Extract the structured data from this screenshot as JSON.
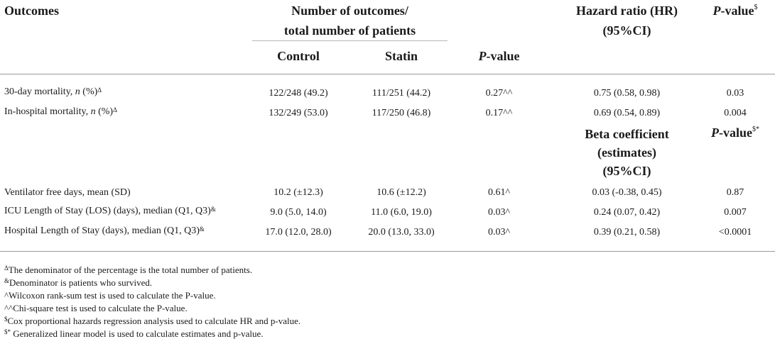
{
  "headers": {
    "outcomes": "Outcomes",
    "number_line1": "Number of outcomes/",
    "number_line2": "total number of patients",
    "control": "Control",
    "statin": "Statin",
    "pvalue_italic": "P",
    "pvalue_rest": "-value",
    "hr_line1": "Hazard ratio (HR)",
    "hr_line2": "(95%CI)",
    "pvalue2_italic": "P",
    "pvalue2_rest": "-value",
    "pvalue2_sup": "$",
    "beta_line1": "Beta coefficient",
    "beta_line2": "(estimates)",
    "beta_line3": "(95%CI)",
    "pvalue3_italic": "P",
    "pvalue3_rest": "-value",
    "pvalue3_sup": "$*"
  },
  "rows": [
    {
      "pre": "30-day mortality, ",
      "ital": "n",
      "post": " (%)",
      "sup": "Δ",
      "control": "122/248 (49.2)",
      "statin": "111/251 (44.2)",
      "p": "0.27^^",
      "est": "0.75 (0.58, 0.98)",
      "p2": "0.03"
    },
    {
      "pre": "In-hospital mortality, ",
      "ital": "n",
      "post": " (%)",
      "sup": "Δ",
      "control": "132/249 (53.0)",
      "statin": "117/250 (46.8)",
      "p": "0.17^^",
      "est": "0.69 (0.54, 0.89)",
      "p2": "0.004"
    },
    {
      "pre": "Ventilator free days, mean (SD)",
      "ital": "",
      "post": "",
      "sup": "",
      "control": "10.2 (±12.3)",
      "statin": "10.6 (±12.2)",
      "p": "0.61^",
      "est": "0.03 (-0.38, 0.45)",
      "p2": "0.87"
    },
    {
      "pre": "ICU Length of Stay (LOS) (days), median (Q1, Q3)",
      "ital": "",
      "post": "",
      "sup": "&",
      "control": "9.0 (5.0, 14.0)",
      "statin": "11.0 (6.0, 19.0)",
      "p": "0.03^",
      "est": "0.24 (0.07, 0.42)",
      "p2": "0.007"
    },
    {
      "pre": "Hospital Length of Stay (days), median (Q1, Q3)",
      "ital": "",
      "post": "",
      "sup": "&",
      "control": "17.0 (12.0, 28.0)",
      "statin": "20.0 (13.0, 33.0)",
      "p": "0.03^",
      "est": "0.39 (0.21, 0.58)",
      "p2": "<0.0001"
    }
  ],
  "footnotes": [
    {
      "sup": "Δ",
      "text": "The denominator of the percentage is the total number of patients."
    },
    {
      "sup": "&",
      "text": "Denominator is patients who survived."
    },
    {
      "sup": "",
      "text": "^Wilcoxon rank-sum test is used to calculate the P-value."
    },
    {
      "sup": "",
      "text": "^^Chi-square test is used to calculate the P-value."
    },
    {
      "sup": "$",
      "text": "Cox proportional hazards regression analysis used to calculate HR and p-value."
    },
    {
      "sup": "$*",
      "text": " Generalized linear model is used to calculate estimates and p-value."
    }
  ]
}
